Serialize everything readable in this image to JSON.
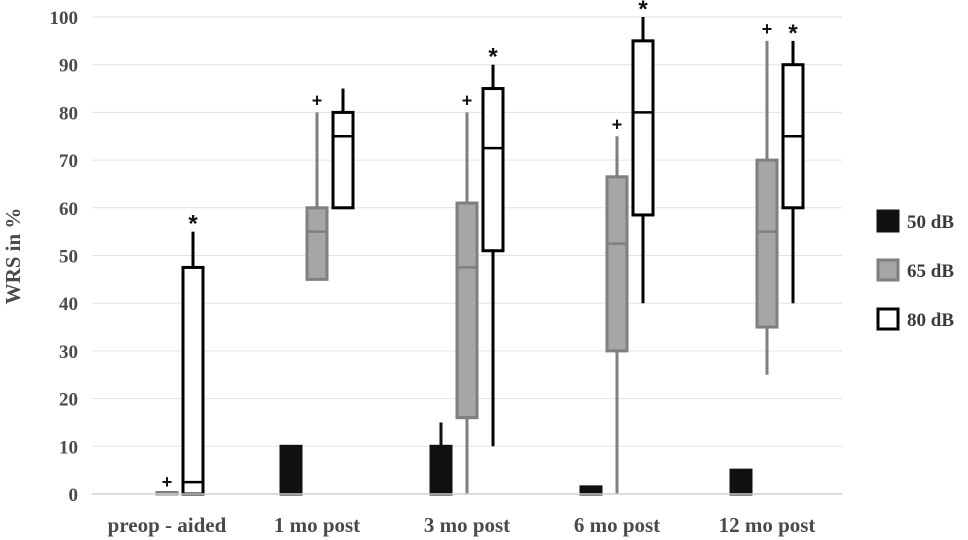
{
  "chart_data": {
    "type": "boxplot",
    "ylabel": "WRS in %",
    "ylim": [
      0,
      100
    ],
    "yticks": [
      0,
      10,
      20,
      30,
      40,
      50,
      60,
      70,
      80,
      90,
      100
    ],
    "grid": true,
    "legend_position": "right",
    "categories": [
      "preop - aided",
      "1 mo post",
      "3 mo post",
      "6 mo post",
      "12 mo post"
    ],
    "series": [
      {
        "name": "50 dB",
        "fill": "#111111",
        "stroke": "#111111",
        "boxes": [
          null,
          {
            "min": 0,
            "q1": 0,
            "median": 0,
            "q3": 10,
            "max": 10,
            "marker": ""
          },
          {
            "min": 0,
            "q1": 0,
            "median": 0,
            "q3": 10,
            "max": 15,
            "marker": ""
          },
          {
            "min": 0,
            "q1": 0,
            "median": 0,
            "q3": 1.5,
            "max": 1.5,
            "marker": ""
          },
          {
            "min": 0,
            "q1": 0,
            "median": 0,
            "q3": 5,
            "max": 5,
            "marker": ""
          }
        ]
      },
      {
        "name": "65 dB",
        "fill": "#a6a6a6",
        "stroke": "#7f7f7f",
        "boxes": [
          {
            "min": 0,
            "q1": 0,
            "median": 0,
            "q3": 0,
            "max": 0,
            "marker": "+"
          },
          {
            "min": 45,
            "q1": 45,
            "median": 55,
            "q3": 60,
            "max": 80,
            "marker": "+"
          },
          {
            "min": 0,
            "q1": 16,
            "median": 47.5,
            "q3": 61,
            "max": 80,
            "marker": "+"
          },
          {
            "min": 0,
            "q1": 30,
            "median": 52.5,
            "q3": 66.5,
            "max": 75,
            "marker": "+"
          },
          {
            "min": 25,
            "q1": 35,
            "median": 55,
            "q3": 70,
            "max": 95,
            "marker": "+"
          }
        ]
      },
      {
        "name": "80 dB",
        "fill": "#ffffff",
        "stroke": "#000000",
        "boxes": [
          {
            "min": 0,
            "q1": 0,
            "median": 2.5,
            "q3": 47.5,
            "max": 55,
            "marker": "*"
          },
          {
            "min": 60,
            "q1": 60,
            "median": 75,
            "q3": 80,
            "max": 85,
            "marker": ""
          },
          {
            "min": 10,
            "q1": 51,
            "median": 72.5,
            "q3": 85,
            "max": 90,
            "marker": "*"
          },
          {
            "min": 40,
            "q1": 58.5,
            "median": 80,
            "q3": 95,
            "max": 100,
            "marker": "*"
          },
          {
            "min": 40,
            "q1": 60,
            "median": 75,
            "q3": 90,
            "max": 95,
            "marker": "*"
          }
        ]
      }
    ]
  }
}
